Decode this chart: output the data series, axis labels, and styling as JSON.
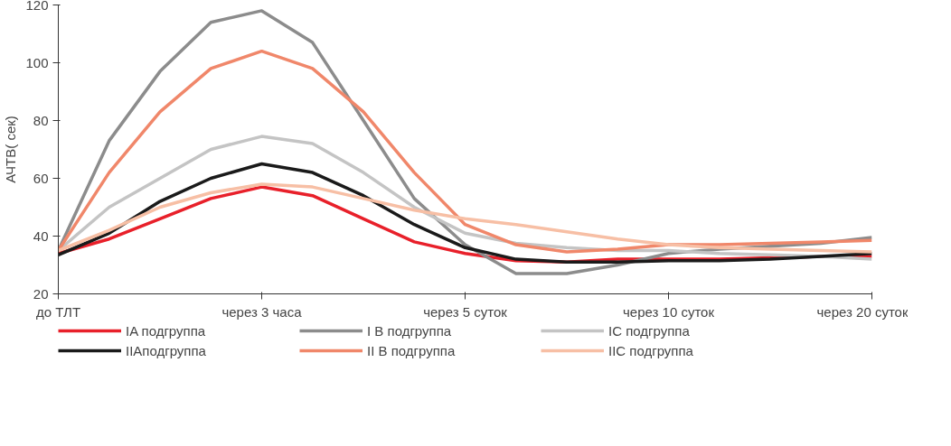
{
  "chart_data": {
    "type": "line",
    "ylabel": "АЧТВ( сек)",
    "categories": [
      "до ТЛТ",
      null,
      null,
      null,
      "через 3 часа",
      null,
      null,
      null,
      "через 5 суток",
      null,
      null,
      null,
      "через 10 суток",
      null,
      null,
      null,
      "через 20 суток"
    ],
    "ylim": [
      20,
      120
    ],
    "yticks": [
      20,
      40,
      60,
      80,
      100,
      120
    ],
    "grid": false,
    "legend": "bottom",
    "marker": "none",
    "line_style": "solid",
    "series": [
      {
        "name": "IA подгруппа",
        "color": "#e8202a",
        "values": [
          34,
          39,
          46,
          53,
          57,
          54,
          46,
          38,
          34,
          31.5,
          31,
          32,
          32,
          32,
          32.5,
          33,
          33
        ]
      },
      {
        "name": "I B подгруппа",
        "color": "#8c8c8c",
        "values": [
          35,
          73,
          97,
          114,
          118,
          107,
          80,
          53,
          37,
          27,
          27,
          30,
          34,
          35.5,
          36.5,
          37.5,
          39.5
        ]
      },
      {
        "name": "IC подгруппа",
        "color": "#c4c4c4",
        "values": [
          35,
          50,
          60,
          70,
          74.5,
          72,
          62,
          50,
          41,
          37.5,
          36,
          35,
          35,
          34,
          33.5,
          33,
          32
        ]
      },
      {
        "name": "IIAподгруппа",
        "color": "#1a1a1a",
        "values": [
          33.5,
          41,
          52,
          60,
          65,
          62,
          54,
          44,
          36,
          32,
          31,
          31,
          31.5,
          31.5,
          32,
          33,
          34
        ]
      },
      {
        "name": "II B подгруппа",
        "color": "#f0876a",
        "values": [
          35,
          62,
          83,
          98,
          104,
          98,
          83,
          62,
          44,
          37,
          34.5,
          35.5,
          37,
          37,
          37.5,
          38,
          38.5
        ]
      },
      {
        "name": "IIC подгруппа",
        "color": "#f7bfa5",
        "values": [
          35,
          42,
          50,
          55,
          58,
          57,
          53,
          49,
          46,
          44,
          41.5,
          39,
          37,
          36,
          35.5,
          35,
          34.5
        ]
      }
    ]
  }
}
